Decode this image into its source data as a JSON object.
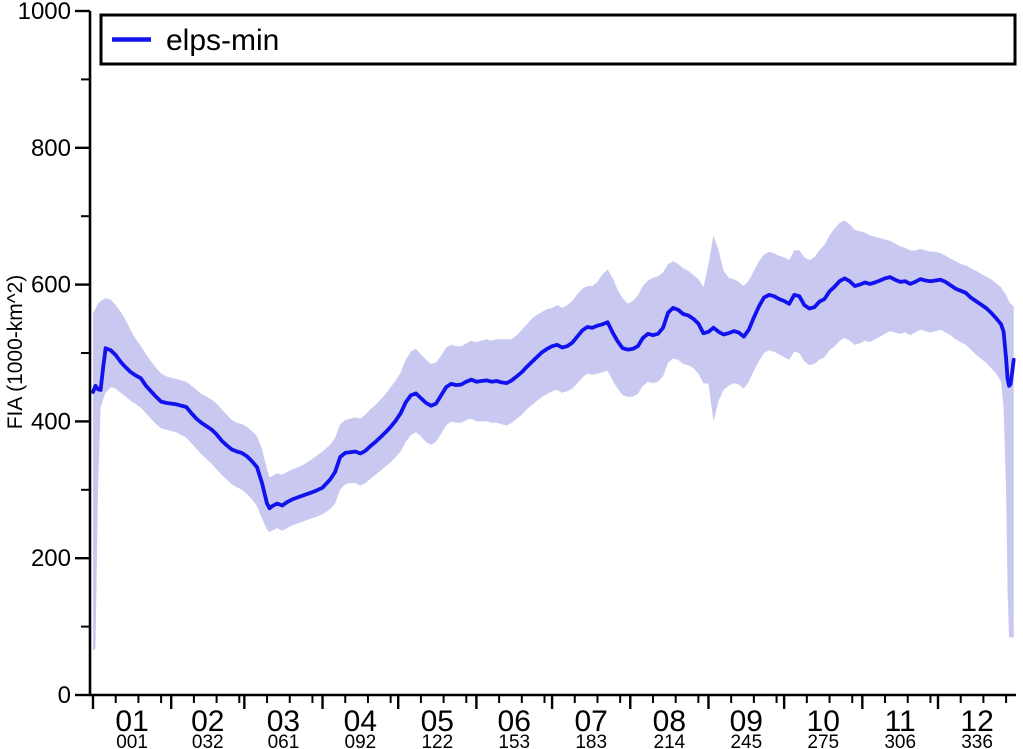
{
  "page": {
    "background": "#ffffff"
  },
  "chart_data": {
    "type": "line",
    "title": "",
    "xlabel": "",
    "ylabel": "FIA (1000-km^2)",
    "legend": {
      "label": "elps-min",
      "position": "top",
      "full_width_box": true
    },
    "colors": {
      "line": "#1212ee",
      "band": "#c8c8f1",
      "axis": "#000000",
      "text": "#000000"
    },
    "y_axis": {
      "min": 0,
      "max": 1000,
      "major_ticks": [
        0,
        200,
        400,
        600,
        800,
        1000
      ],
      "minor_ticks": [
        100,
        300,
        500,
        700,
        900
      ],
      "grid": false
    },
    "x_axis": {
      "unit": "day-of-year",
      "year_days": 366,
      "months": [
        {
          "label": "01",
          "doy_label": "001",
          "start_day": 1
        },
        {
          "label": "02",
          "doy_label": "032",
          "start_day": 32
        },
        {
          "label": "03",
          "doy_label": "061",
          "start_day": 61
        },
        {
          "label": "04",
          "doy_label": "092",
          "start_day": 92
        },
        {
          "label": "05",
          "doy_label": "122",
          "start_day": 122
        },
        {
          "label": "06",
          "doy_label": "153",
          "start_day": 153
        },
        {
          "label": "07",
          "doy_label": "183",
          "start_day": 183
        },
        {
          "label": "08",
          "doy_label": "214",
          "start_day": 214
        },
        {
          "label": "09",
          "doy_label": "245",
          "start_day": 245
        },
        {
          "label": "10",
          "doy_label": "275",
          "start_day": 275
        },
        {
          "label": "11",
          "doy_label": "306",
          "start_day": 306
        },
        {
          "label": "12",
          "doy_label": "336",
          "start_day": 336
        }
      ]
    },
    "days": [
      1,
      2,
      3,
      4,
      5,
      6,
      8,
      10,
      12,
      14,
      16,
      18,
      20,
      22,
      24,
      26,
      28,
      30,
      32,
      34,
      36,
      38,
      40,
      42,
      44,
      46,
      48,
      50,
      52,
      54,
      56,
      58,
      60,
      62,
      64,
      66,
      68,
      70,
      71,
      72,
      74,
      76,
      78,
      80,
      83,
      86,
      89,
      92,
      95,
      97,
      99,
      101,
      103,
      105,
      107,
      109,
      111,
      113,
      115,
      117,
      119,
      121,
      123,
      125,
      127,
      129,
      131,
      133,
      135,
      137,
      139,
      141,
      143,
      145,
      147,
      149,
      151,
      153,
      155,
      157,
      159,
      161,
      163,
      165,
      167,
      169,
      171,
      173,
      175,
      177,
      179,
      181,
      183,
      185,
      187,
      189,
      191,
      193,
      195,
      197,
      199,
      201,
      203,
      205,
      207,
      209,
      211,
      213,
      215,
      217,
      219,
      221,
      223,
      225,
      227,
      229,
      231,
      233,
      235,
      237,
      239,
      241,
      243,
      245,
      247,
      249,
      251,
      253,
      255,
      257,
      259,
      261,
      263,
      265,
      267,
      269,
      271,
      273,
      275,
      277,
      279,
      281,
      283,
      285,
      287,
      289,
      291,
      293,
      295,
      297,
      299,
      301,
      303,
      305,
      307,
      309,
      311,
      313,
      315,
      317,
      319,
      321,
      323,
      325,
      327,
      329,
      331,
      333,
      335,
      337,
      339,
      341,
      343,
      345,
      347,
      349,
      351,
      353,
      355,
      357,
      359,
      361,
      362,
      363,
      363.6,
      364.2,
      364.8,
      365.4,
      366
    ],
    "series": [
      {
        "name": "elps-min",
        "color": "#1212ee",
        "values": [
          443,
          452,
          447,
          446,
          478,
          507,
          504,
          497,
          487,
          479,
          472,
          467,
          463,
          452,
          444,
          436,
          429,
          427,
          426,
          425,
          423,
          421,
          412,
          404,
          398,
          393,
          388,
          381,
          372,
          365,
          359,
          356,
          354,
          349,
          342,
          333,
          310,
          280,
          273,
          276,
          280,
          277,
          282,
          286,
          290,
          294,
          298,
          303,
          315,
          326,
          348,
          354,
          355,
          356,
          353,
          357,
          364,
          370,
          377,
          384,
          392,
          401,
          412,
          428,
          438,
          441,
          434,
          427,
          423,
          426,
          438,
          450,
          455,
          453,
          454,
          458,
          461,
          458,
          459,
          460,
          458,
          459,
          457,
          456,
          460,
          466,
          472,
          480,
          487,
          494,
          501,
          506,
          510,
          512,
          508,
          510,
          515,
          524,
          533,
          538,
          537,
          540,
          542,
          545,
          530,
          517,
          507,
          505,
          506,
          510,
          522,
          528,
          526,
          528,
          537,
          559,
          566,
          563,
          557,
          555,
          550,
          543,
          529,
          531,
          537,
          531,
          527,
          529,
          532,
          530,
          524,
          534,
          552,
          568,
          581,
          585,
          583,
          579,
          576,
          572,
          585,
          583,
          570,
          565,
          567,
          575,
          579,
          590,
          597,
          605,
          609,
          605,
          598,
          600,
          603,
          601,
          603,
          606,
          609,
          611,
          607,
          604,
          605,
          601,
          604,
          608,
          606,
          605,
          606,
          607,
          604,
          599,
          594,
          591,
          588,
          581,
          576,
          571,
          566,
          559,
          551,
          542,
          531,
          492,
          462,
          452,
          455,
          472,
          490
        ]
      }
    ],
    "band": {
      "name": "elps-min spread",
      "color": "#c8c8f1",
      "lower": [
        65,
        68,
        300,
        420,
        432,
        442,
        450,
        448,
        442,
        436,
        430,
        425,
        420,
        412,
        404,
        396,
        390,
        388,
        386,
        384,
        380,
        376,
        368,
        360,
        352,
        345,
        338,
        330,
        322,
        315,
        308,
        304,
        300,
        294,
        286,
        276,
        258,
        242,
        238,
        240,
        244,
        240,
        244,
        248,
        252,
        256,
        260,
        264,
        272,
        280,
        300,
        308,
        310,
        310,
        306,
        310,
        316,
        322,
        328,
        334,
        340,
        348,
        356,
        370,
        380,
        384,
        378,
        370,
        366,
        370,
        382,
        394,
        400,
        398,
        398,
        402,
        404,
        400,
        400,
        400,
        398,
        398,
        396,
        394,
        398,
        404,
        410,
        418,
        424,
        430,
        436,
        440,
        444,
        446,
        442,
        444,
        448,
        456,
        464,
        470,
        468,
        470,
        472,
        474,
        460,
        448,
        438,
        436,
        436,
        440,
        452,
        458,
        456,
        458,
        466,
        486,
        492,
        490,
        484,
        482,
        478,
        470,
        456,
        455,
        400,
        430,
        446,
        452,
        456,
        454,
        448,
        458,
        474,
        488,
        500,
        504,
        502,
        498,
        494,
        490,
        502,
        500,
        488,
        482,
        484,
        490,
        494,
        504,
        510,
        518,
        522,
        518,
        512,
        514,
        518,
        516,
        520,
        524,
        528,
        532,
        530,
        528,
        530,
        526,
        530,
        534,
        532,
        530,
        532,
        534,
        530,
        526,
        520,
        516,
        512,
        505,
        498,
        492,
        486,
        478,
        470,
        458,
        420,
        300,
        150,
        85,
        84,
        84,
        84
      ],
      "upper": [
        558,
        565,
        572,
        576,
        578,
        580,
        578,
        570,
        560,
        548,
        533,
        520,
        510,
        498,
        488,
        478,
        470,
        466,
        464,
        462,
        460,
        458,
        452,
        446,
        440,
        436,
        432,
        426,
        418,
        410,
        402,
        398,
        396,
        392,
        386,
        378,
        360,
        330,
        318,
        320,
        324,
        322,
        326,
        330,
        334,
        340,
        348,
        356,
        366,
        376,
        396,
        402,
        404,
        406,
        404,
        410,
        418,
        424,
        432,
        440,
        450,
        460,
        472,
        490,
        502,
        506,
        498,
        490,
        484,
        486,
        496,
        508,
        512,
        510,
        510,
        514,
        518,
        516,
        518,
        520,
        518,
        520,
        520,
        520,
        520,
        526,
        534,
        542,
        550,
        556,
        560,
        564,
        566,
        570,
        566,
        570,
        576,
        586,
        594,
        598,
        598,
        604,
        615,
        622,
        610,
        592,
        580,
        572,
        576,
        584,
        598,
        606,
        610,
        612,
        618,
        630,
        634,
        630,
        624,
        620,
        614,
        608,
        596,
        630,
        672,
        650,
        620,
        610,
        608,
        604,
        598,
        606,
        620,
        634,
        644,
        648,
        646,
        642,
        640,
        636,
        650,
        650,
        640,
        636,
        640,
        650,
        658,
        672,
        682,
        690,
        694,
        688,
        680,
        678,
        676,
        672,
        670,
        668,
        666,
        664,
        660,
        656,
        654,
        650,
        650,
        652,
        650,
        648,
        648,
        646,
        642,
        638,
        634,
        630,
        628,
        624,
        620,
        616,
        612,
        608,
        602,
        596,
        590,
        585,
        580,
        575,
        572,
        570,
        568
      ]
    }
  }
}
